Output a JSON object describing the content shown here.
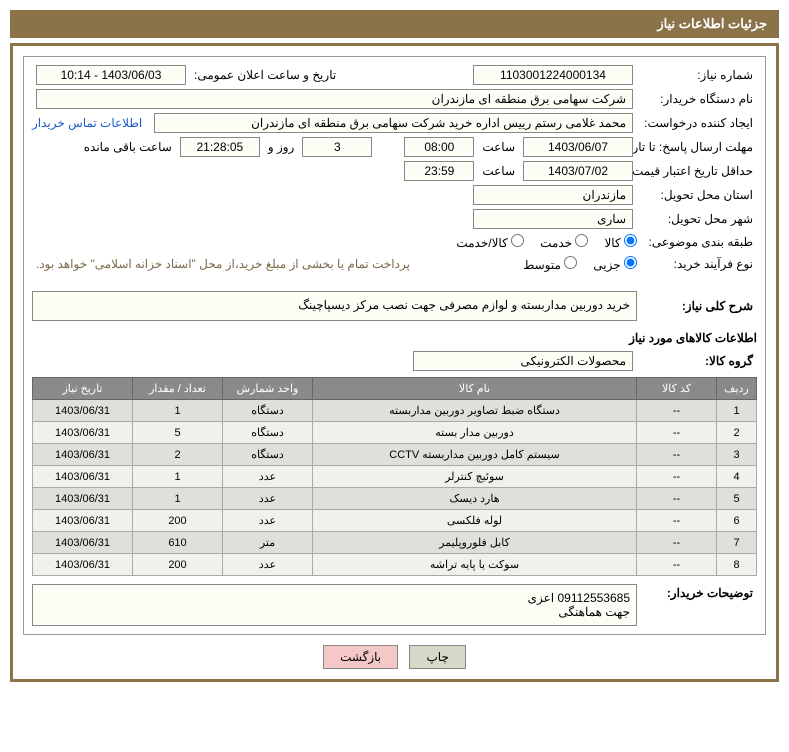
{
  "header": "جزئیات اطلاعات نیاز",
  "labels": {
    "need_no": "شماره نیاز:",
    "announce_datetime": "تاریخ و ساعت اعلان عمومی:",
    "buyer_org": "نام دستگاه خریدار:",
    "requester": "ایجاد کننده درخواست:",
    "buyer_contact": "اطلاعات تماس خریدار",
    "deadline": "مهلت ارسال پاسخ: تا تاریخ:",
    "time": "ساعت",
    "days_and": "روز و",
    "remaining": "ساعت باقی مانده",
    "min_validity": "حداقل تاریخ اعتبار قیمت: تا تاریخ:",
    "province": "استان محل تحویل:",
    "city": "شهر محل تحویل:",
    "category": "طبقه بندی موضوعی:",
    "cat_goods": "کالا",
    "cat_service": "خدمت",
    "cat_both": "کالا/خدمت",
    "purchase_type": "نوع فرآیند خرید:",
    "pt_small": "جزیی",
    "pt_medium": "متوسط",
    "payment_note": "پرداخت تمام یا بخشی از مبلغ خرید،از محل \"اسناد خزانه اسلامی\" خواهد بود.",
    "general_desc": "شرح کلی نیاز:",
    "goods_info": "اطلاعات کالاهای مورد نیاز",
    "goods_group": "گروه کالا:",
    "buyer_notes": "توضیحات خریدار:",
    "print": "چاپ",
    "back": "بازگشت"
  },
  "values": {
    "need_no": "1103001224000134",
    "announce_datetime": "1403/06/03 - 10:14",
    "buyer_org": "شرکت سهامی برق منطقه ای مازندران",
    "requester": "محمد غلامی رستم رییس اداره خرید شرکت سهامی برق منطقه ای مازندران",
    "deadline_date": "1403/06/07",
    "deadline_time": "08:00",
    "deadline_days": "3",
    "deadline_remain": "21:28:05",
    "validity_date": "1403/07/02",
    "validity_time": "23:59",
    "province": "مازندران",
    "city": "ساری",
    "general_desc": "خرید دوربین مداربسته و لوازم مصرفی جهت نصب مرکز دیسپاچینگ",
    "goods_group": "محصولات الکترونیکی",
    "buyer_notes": "09112553685 اعزی\nجهت هماهنگی"
  },
  "table": {
    "headers": [
      "ردیف",
      "کد کالا",
      "نام کالا",
      "واحد شمارش",
      "تعداد / مقدار",
      "تاریخ نیاز"
    ],
    "rows": [
      [
        "1",
        "--",
        "دستگاه ضبط تصاویر دوربین مداربسته",
        "دستگاه",
        "1",
        "1403/06/31"
      ],
      [
        "2",
        "--",
        "دوربین مدار بسته",
        "دستگاه",
        "5",
        "1403/06/31"
      ],
      [
        "3",
        "--",
        "سیستم کامل دوربین مداربسته CCTV",
        "دستگاه",
        "2",
        "1403/06/31"
      ],
      [
        "4",
        "--",
        "سوئیچ کنترلر",
        "عدد",
        "1",
        "1403/06/31"
      ],
      [
        "5",
        "--",
        "هارد دیسک",
        "عدد",
        "1",
        "1403/06/31"
      ],
      [
        "6",
        "--",
        "لوله فلکسی",
        "عدد",
        "200",
        "1403/06/31"
      ],
      [
        "7",
        "--",
        "کابل فلوروپلیمر",
        "متر",
        "610",
        "1403/06/31"
      ],
      [
        "8",
        "--",
        "سوکت یا پایه تراشه",
        "عدد",
        "200",
        "1403/06/31"
      ]
    ]
  },
  "col_widths": [
    "40px",
    "80px",
    "auto",
    "90px",
    "90px",
    "100px"
  ]
}
